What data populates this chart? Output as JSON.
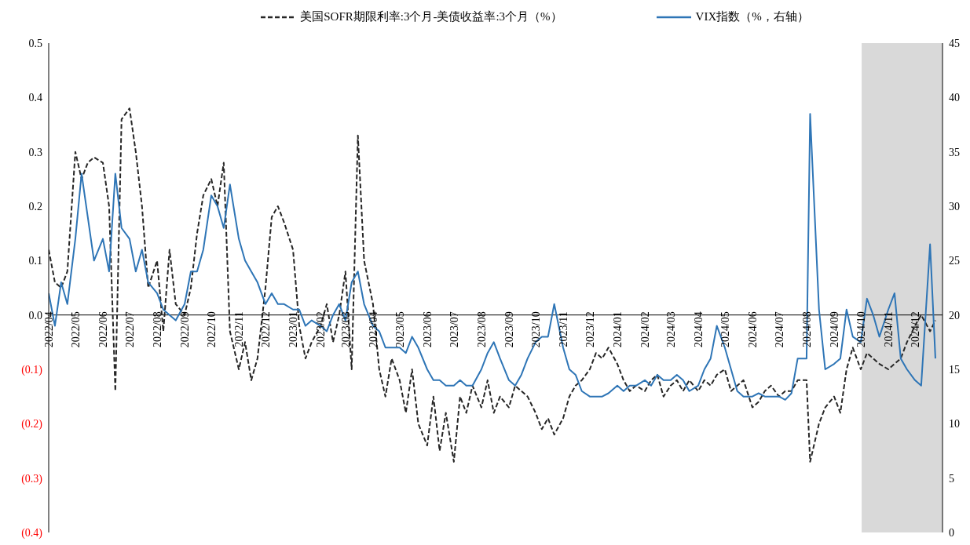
{
  "chart_data": {
    "type": "line",
    "legend": "top",
    "marker": "none",
    "grid": false,
    "xlim": [
      "2022-04-01",
      "2025-01-01"
    ],
    "xticks": [
      {
        "value": "2022-04-01",
        "label": "2022/04"
      },
      {
        "value": "2022-05-01",
        "label": "2022/05"
      },
      {
        "value": "2022-06-01",
        "label": "2022/06"
      },
      {
        "value": "2022-07-01",
        "label": "2022/07"
      },
      {
        "value": "2022-08-01",
        "label": "2022/08"
      },
      {
        "value": "2022-09-01",
        "label": "2022/09"
      },
      {
        "value": "2022-10-01",
        "label": "2022/10"
      },
      {
        "value": "2022-11-01",
        "label": "2022/11"
      },
      {
        "value": "2022-12-01",
        "label": "2022/12"
      },
      {
        "value": "2023-01-01",
        "label": "2023/01"
      },
      {
        "value": "2023-02-01",
        "label": "2023/02"
      },
      {
        "value": "2023-03-01",
        "label": "2023/03"
      },
      {
        "value": "2023-04-01",
        "label": "2023/04"
      },
      {
        "value": "2023-05-01",
        "label": "2023/05"
      },
      {
        "value": "2023-06-01",
        "label": "2023/06"
      },
      {
        "value": "2023-07-01",
        "label": "2023/07"
      },
      {
        "value": "2023-08-01",
        "label": "2023/08"
      },
      {
        "value": "2023-09-01",
        "label": "2023/09"
      },
      {
        "value": "2023-10-01",
        "label": "2023/10"
      },
      {
        "value": "2023-11-01",
        "label": "2023/11"
      },
      {
        "value": "2023-12-01",
        "label": "2023/12"
      },
      {
        "value": "2024-01-01",
        "label": "2024/01"
      },
      {
        "value": "2024-02-01",
        "label": "2024/02"
      },
      {
        "value": "2024-03-01",
        "label": "2024/03"
      },
      {
        "value": "2024-04-01",
        "label": "2024/04"
      },
      {
        "value": "2024-05-01",
        "label": "2024/05"
      },
      {
        "value": "2024-06-01",
        "label": "2024/06"
      },
      {
        "value": "2024-07-01",
        "label": "2024/07"
      },
      {
        "value": "2024-08-01",
        "label": "2024/08"
      },
      {
        "value": "2024-09-01",
        "label": "2024/09"
      },
      {
        "value": "2024-10-01",
        "label": "2024/10"
      },
      {
        "value": "2024-11-01",
        "label": "2024/11"
      },
      {
        "value": "2024-12-01",
        "label": "2024/12"
      }
    ],
    "ylim": [
      -0.4,
      0.5
    ],
    "yticks": [
      {
        "value": -0.4,
        "label": "(0.4)"
      },
      {
        "value": -0.3,
        "label": "(0.3)"
      },
      {
        "value": -0.2,
        "label": "(0.2)"
      },
      {
        "value": -0.1,
        "label": "(0.1)"
      },
      {
        "value": 0,
        "label": "0.0"
      },
      {
        "value": 0.1,
        "label": "0.1"
      },
      {
        "value": 0.2,
        "label": "0.2"
      },
      {
        "value": 0.3,
        "label": "0.3"
      },
      {
        "value": 0.4,
        "label": "0.4"
      },
      {
        "value": 0.5,
        "label": "0.5"
      }
    ],
    "y2lim": [
      0,
      45
    ],
    "y2ticks": [
      0,
      5,
      10,
      15,
      20,
      25,
      30,
      35,
      40,
      45
    ],
    "x": [
      "2022-04-01",
      "2022-04-08",
      "2022-04-15",
      "2022-04-22",
      "2022-05-01",
      "2022-05-08",
      "2022-05-15",
      "2022-05-22",
      "2022-06-01",
      "2022-06-08",
      "2022-06-15",
      "2022-06-22",
      "2022-07-01",
      "2022-07-08",
      "2022-07-15",
      "2022-07-22",
      "2022-08-01",
      "2022-08-08",
      "2022-08-15",
      "2022-08-22",
      "2022-09-01",
      "2022-09-08",
      "2022-09-15",
      "2022-09-22",
      "2022-10-01",
      "2022-10-08",
      "2022-10-15",
      "2022-10-22",
      "2022-11-01",
      "2022-11-08",
      "2022-11-15",
      "2022-11-22",
      "2022-12-01",
      "2022-12-08",
      "2022-12-15",
      "2022-12-22",
      "2023-01-01",
      "2023-01-08",
      "2023-01-15",
      "2023-01-22",
      "2023-02-01",
      "2023-02-08",
      "2023-02-15",
      "2023-02-22",
      "2023-03-01",
      "2023-03-08",
      "2023-03-15",
      "2023-03-22",
      "2023-04-01",
      "2023-04-08",
      "2023-04-15",
      "2023-04-22",
      "2023-05-01",
      "2023-05-08",
      "2023-05-15",
      "2023-05-22",
      "2023-06-01",
      "2023-06-08",
      "2023-06-15",
      "2023-06-22",
      "2023-07-01",
      "2023-07-08",
      "2023-07-15",
      "2023-07-22",
      "2023-08-01",
      "2023-08-08",
      "2023-08-15",
      "2023-08-22",
      "2023-09-01",
      "2023-09-08",
      "2023-09-15",
      "2023-09-22",
      "2023-10-01",
      "2023-10-08",
      "2023-10-15",
      "2023-10-22",
      "2023-11-01",
      "2023-11-08",
      "2023-11-15",
      "2023-11-22",
      "2023-12-01",
      "2023-12-08",
      "2023-12-15",
      "2023-12-22",
      "2024-01-01",
      "2024-01-08",
      "2024-01-15",
      "2024-01-22",
      "2024-02-01",
      "2024-02-08",
      "2024-02-15",
      "2024-02-22",
      "2024-03-01",
      "2024-03-08",
      "2024-03-15",
      "2024-03-22",
      "2024-04-01",
      "2024-04-08",
      "2024-04-15",
      "2024-04-22",
      "2024-05-01",
      "2024-05-08",
      "2024-05-15",
      "2024-05-22",
      "2024-06-01",
      "2024-06-08",
      "2024-06-15",
      "2024-06-22",
      "2024-07-01",
      "2024-07-08",
      "2024-07-15",
      "2024-07-22",
      "2024-08-01",
      "2024-08-05",
      "2024-08-15",
      "2024-08-22",
      "2024-09-01",
      "2024-09-08",
      "2024-09-15",
      "2024-09-22",
      "2024-10-01",
      "2024-10-08",
      "2024-10-15",
      "2024-10-22",
      "2024-11-01",
      "2024-11-08",
      "2024-11-15",
      "2024-11-22",
      "2024-12-01",
      "2024-12-08",
      "2024-12-18",
      "2024-12-24"
    ],
    "series": [
      {
        "name": "美国SOFR期限利率:3个月-美债收益率:3个月（%）",
        "color": "#262626",
        "line_style": "dashed",
        "values": [
          0.12,
          0.06,
          0.05,
          0.08,
          0.3,
          0.25,
          0.28,
          0.29,
          0.28,
          0.2,
          -0.14,
          0.36,
          0.38,
          0.3,
          0.2,
          0.05,
          0.1,
          -0.03,
          0.12,
          0.02,
          0.0,
          0.05,
          0.15,
          0.22,
          0.25,
          0.2,
          0.28,
          -0.03,
          -0.1,
          -0.05,
          -0.12,
          -0.08,
          0.05,
          0.18,
          0.2,
          0.17,
          0.12,
          -0.02,
          -0.08,
          -0.05,
          -0.02,
          0.02,
          -0.05,
          0.0,
          0.08,
          -0.1,
          0.33,
          0.1,
          0.02,
          -0.1,
          -0.15,
          -0.08,
          -0.12,
          -0.18,
          -0.1,
          -0.2,
          -0.24,
          -0.15,
          -0.25,
          -0.18,
          -0.27,
          -0.15,
          -0.18,
          -0.13,
          -0.17,
          -0.12,
          -0.18,
          -0.15,
          -0.17,
          -0.13,
          -0.14,
          -0.15,
          -0.18,
          -0.21,
          -0.19,
          -0.22,
          -0.19,
          -0.15,
          -0.13,
          -0.12,
          -0.1,
          -0.07,
          -0.08,
          -0.06,
          -0.09,
          -0.12,
          -0.14,
          -0.13,
          -0.14,
          -0.12,
          -0.11,
          -0.15,
          -0.13,
          -0.12,
          -0.14,
          -0.12,
          -0.14,
          -0.12,
          -0.13,
          -0.11,
          -0.1,
          -0.14,
          -0.13,
          -0.12,
          -0.17,
          -0.16,
          -0.14,
          -0.13,
          -0.15,
          -0.14,
          -0.14,
          -0.12,
          -0.12,
          -0.27,
          -0.2,
          -0.17,
          -0.15,
          -0.18,
          -0.1,
          -0.06,
          -0.1,
          -0.07,
          -0.08,
          -0.09,
          -0.1,
          -0.09,
          -0.08,
          -0.05,
          -0.02,
          0.0,
          -0.03,
          -0.01
        ]
      },
      {
        "name": "VIX指数（%，右轴）",
        "color": "#2e75b6",
        "line_style": "solid",
        "axis": "y2",
        "values": [
          22,
          19,
          23,
          21,
          27,
          33,
          29,
          25,
          27,
          24,
          33,
          28,
          27,
          24,
          26,
          23,
          22,
          20.5,
          20,
          19.5,
          21,
          24,
          24,
          26,
          31,
          30,
          28,
          32,
          27,
          25,
          24,
          23,
          21,
          22,
          21,
          21,
          20.5,
          20.5,
          19,
          19.5,
          19,
          18.5,
          20,
          21,
          19.5,
          23,
          24,
          21,
          19,
          18.5,
          17,
          17,
          17,
          16.5,
          18,
          17,
          15,
          14,
          14,
          13.5,
          13.5,
          14,
          13.5,
          13.5,
          15,
          16.5,
          17.5,
          16,
          14,
          13.5,
          14.5,
          16,
          17.5,
          18,
          18,
          21,
          17,
          15,
          14.5,
          13,
          12.5,
          12.5,
          12.5,
          12.8,
          13.5,
          13,
          13.5,
          13.5,
          14,
          13.5,
          14.5,
          14,
          14,
          14.5,
          14,
          13,
          13.5,
          15,
          16,
          19,
          17,
          15,
          13,
          12.5,
          12.5,
          12.8,
          12.5,
          12.5,
          12.5,
          12.2,
          12.8,
          16,
          16,
          38.5,
          20.5,
          15,
          15.5,
          16,
          20.5,
          18,
          17.5,
          21.5,
          20,
          18,
          20.5,
          22,
          16,
          15,
          14,
          13.5,
          26.5,
          16
        ]
      }
    ],
    "bands": [
      {
        "axis": "x",
        "from": "2024-10-02",
        "to": "2025-01-01",
        "color": "#d9d9d9"
      }
    ]
  }
}
